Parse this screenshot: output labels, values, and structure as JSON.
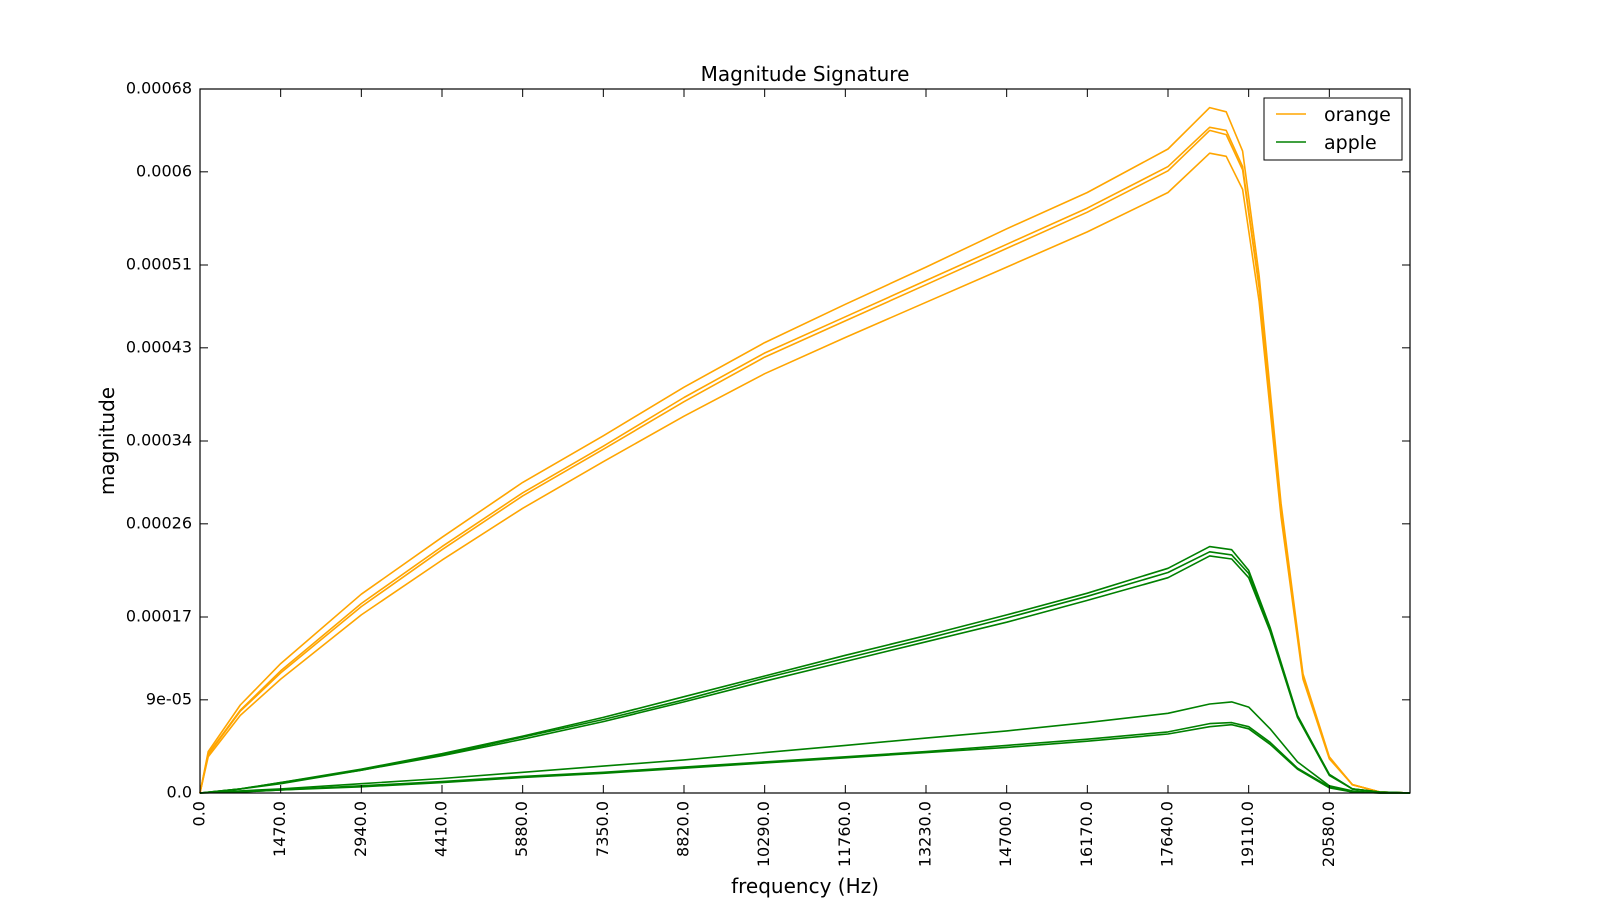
{
  "chart_data": {
    "type": "line",
    "title": "Magnitude Signature",
    "xlabel": "frequency (Hz)",
    "ylabel": "magnitude",
    "xlim": [
      0,
      22050
    ],
    "ylim": [
      0,
      0.00068
    ],
    "grid": false,
    "legend_position": "top-right",
    "x_ticks": [
      {
        "value": 0,
        "label": "0.0"
      },
      {
        "value": 1470,
        "label": "1470.0"
      },
      {
        "value": 2940,
        "label": "2940.0"
      },
      {
        "value": 4410,
        "label": "4410.0"
      },
      {
        "value": 5880,
        "label": "5880.0"
      },
      {
        "value": 7350,
        "label": "7350.0"
      },
      {
        "value": 8820,
        "label": "8820.0"
      },
      {
        "value": 10290,
        "label": "10290.0"
      },
      {
        "value": 11760,
        "label": "11760.0"
      },
      {
        "value": 13230,
        "label": "13230.0"
      },
      {
        "value": 14700,
        "label": "14700.0"
      },
      {
        "value": 16170,
        "label": "16170.0"
      },
      {
        "value": 17640,
        "label": "17640.0"
      },
      {
        "value": 19110,
        "label": "19110.0"
      },
      {
        "value": 20580,
        "label": "20580.0"
      }
    ],
    "y_ticks": [
      {
        "value": 0,
        "label": "0.0"
      },
      {
        "value": 9e-05,
        "label": "9e-05"
      },
      {
        "value": 0.00017,
        "label": "0.00017"
      },
      {
        "value": 0.00026,
        "label": "0.00026"
      },
      {
        "value": 0.00034,
        "label": "0.00034"
      },
      {
        "value": 0.00043,
        "label": "0.00043"
      },
      {
        "value": 0.00051,
        "label": "0.00051"
      },
      {
        "value": 0.0006,
        "label": "0.0006"
      },
      {
        "value": 0.00068,
        "label": "0.00068"
      }
    ],
    "legend": [
      {
        "label": "orange",
        "color": "#ffa500"
      },
      {
        "label": "apple",
        "color": "#008000"
      }
    ],
    "series": [
      {
        "name": "orange",
        "color": "#ffa500",
        "x": [
          0,
          150,
          735,
          1470,
          2940,
          4410,
          5880,
          7350,
          8820,
          10290,
          11760,
          13230,
          14700,
          16170,
          17640,
          18400,
          18700,
          19000,
          19300,
          19700,
          20100,
          20580,
          21000,
          21500,
          22050
        ],
        "y": [
          0,
          4e-05,
          8.5e-05,
          0.000125,
          0.000192,
          0.000247,
          0.0003,
          0.000345,
          0.000392,
          0.000435,
          0.000472,
          0.000508,
          0.000545,
          0.00058,
          0.000622,
          0.000662,
          0.000658,
          0.00062,
          0.0005,
          0.00028,
          0.000115,
          3.5e-05,
          8e-06,
          1e-06,
          0
        ]
      },
      {
        "name": "",
        "color": "#ffa500",
        "x": [
          0,
          150,
          735,
          1470,
          2940,
          4410,
          5880,
          7350,
          8820,
          10290,
          11760,
          13230,
          14700,
          16170,
          17640,
          18400,
          18700,
          19000,
          19300,
          19700,
          20100,
          20580,
          21000,
          21500,
          22050
        ],
        "y": [
          0,
          3.8e-05,
          8e-05,
          0.000118,
          0.000183,
          0.000238,
          0.00029,
          0.000335,
          0.000382,
          0.000425,
          0.00046,
          0.000495,
          0.00053,
          0.000565,
          0.000605,
          0.000643,
          0.00064,
          0.000605,
          0.00049,
          0.000275,
          0.000113,
          3.4e-05,
          8e-06,
          1e-06,
          0
        ]
      },
      {
        "name": "",
        "color": "#ffa500",
        "x": [
          0,
          150,
          735,
          1470,
          2940,
          4410,
          5880,
          7350,
          8820,
          10290,
          11760,
          13230,
          14700,
          16170,
          17640,
          18400,
          18700,
          19000,
          19300,
          19700,
          20100,
          20580,
          21000,
          21500,
          22050
        ],
        "y": [
          0,
          3.7e-05,
          7.9e-05,
          0.000116,
          0.00018,
          0.000235,
          0.000287,
          0.000332,
          0.000378,
          0.000421,
          0.000456,
          0.000491,
          0.000526,
          0.000561,
          0.000601,
          0.00064,
          0.000636,
          0.000602,
          0.000488,
          0.000274,
          0.000112,
          3.4e-05,
          8e-06,
          1e-06,
          0
        ]
      },
      {
        "name": "",
        "color": "#ffa500",
        "x": [
          0,
          150,
          735,
          1470,
          2940,
          4410,
          5880,
          7350,
          8820,
          10290,
          11760,
          13230,
          14700,
          16170,
          17640,
          18400,
          18700,
          19000,
          19300,
          19700,
          20100,
          20580,
          21000,
          21500,
          22050
        ],
        "y": [
          0,
          3.5e-05,
          7.5e-05,
          0.00011,
          0.000172,
          0.000225,
          0.000275,
          0.00032,
          0.000364,
          0.000405,
          0.00044,
          0.000474,
          0.000508,
          0.000542,
          0.00058,
          0.000618,
          0.000615,
          0.000583,
          0.000475,
          0.000267,
          0.00011,
          3.3e-05,
          8e-06,
          1e-06,
          0
        ]
      },
      {
        "name": "apple",
        "color": "#008000",
        "x": [
          0,
          735,
          1470,
          2940,
          4410,
          5880,
          7350,
          8820,
          10290,
          11760,
          13230,
          14700,
          16170,
          17640,
          18400,
          18800,
          19110,
          19500,
          20000,
          20580,
          21000,
          21500,
          22050
        ],
        "y": [
          0,
          4e-06,
          1e-05,
          2.3e-05,
          3.8e-05,
          5.5e-05,
          7.3e-05,
          9.3e-05,
          0.000113,
          0.000133,
          0.000152,
          0.000172,
          0.000193,
          0.000217,
          0.000238,
          0.000235,
          0.000215,
          0.00016,
          7.5e-05,
          1.8e-05,
          4e-06,
          1e-06,
          0
        ]
      },
      {
        "name": "",
        "color": "#008000",
        "x": [
          0,
          735,
          1470,
          2940,
          4410,
          5880,
          7350,
          8820,
          10290,
          11760,
          13230,
          14700,
          16170,
          17640,
          18400,
          18800,
          19110,
          19500,
          20000,
          20580,
          21000,
          21500,
          22050
        ],
        "y": [
          0,
          4e-06,
          1e-05,
          2.2e-05,
          3.7e-05,
          5.4e-05,
          7.1e-05,
          9e-05,
          0.000111,
          0.00013,
          0.000149,
          0.000169,
          0.00019,
          0.000213,
          0.000233,
          0.00023,
          0.000212,
          0.000158,
          7.4e-05,
          1.8e-05,
          4e-06,
          1e-06,
          0
        ]
      },
      {
        "name": "",
        "color": "#008000",
        "x": [
          0,
          735,
          1470,
          2940,
          4410,
          5880,
          7350,
          8820,
          10290,
          11760,
          13230,
          14700,
          16170,
          17640,
          18400,
          18800,
          19110,
          19500,
          20000,
          20580,
          21000,
          21500,
          22050
        ],
        "y": [
          0,
          4e-06,
          9e-06,
          2.2e-05,
          3.6e-05,
          5.2e-05,
          6.9e-05,
          8.8e-05,
          0.000108,
          0.000127,
          0.000146,
          0.000165,
          0.000186,
          0.000208,
          0.000229,
          0.000226,
          0.000208,
          0.000156,
          7.3e-05,
          1.7e-05,
          4e-06,
          1e-06,
          0
        ]
      },
      {
        "name": "",
        "color": "#008000",
        "x": [
          0,
          735,
          1470,
          2940,
          4410,
          5880,
          7350,
          8820,
          10290,
          11760,
          13230,
          14700,
          16170,
          17640,
          18400,
          18800,
          19110,
          19500,
          20000,
          20580,
          21000,
          21500,
          22050
        ],
        "y": [
          0,
          2e-06,
          4e-06,
          9e-06,
          1.4e-05,
          2e-05,
          2.6e-05,
          3.2e-05,
          3.9e-05,
          4.6e-05,
          5.3e-05,
          6e-05,
          6.8e-05,
          7.7e-05,
          8.6e-05,
          8.8e-05,
          8.3e-05,
          6.2e-05,
          3e-05,
          7e-06,
          2e-06,
          0,
          0
        ]
      },
      {
        "name": "",
        "color": "#008000",
        "x": [
          0,
          735,
          1470,
          2940,
          4410,
          5880,
          7350,
          8820,
          10290,
          11760,
          13230,
          14700,
          16170,
          17640,
          18400,
          18800,
          19110,
          19500,
          20000,
          20580,
          21000,
          21500,
          22050
        ],
        "y": [
          0,
          1e-06,
          3e-06,
          7e-06,
          1.1e-05,
          1.6e-05,
          2e-05,
          2.5e-05,
          3e-05,
          3.5e-05,
          4e-05,
          4.6e-05,
          5.2e-05,
          5.9e-05,
          6.7e-05,
          6.8e-05,
          6.4e-05,
          4.9e-05,
          2.4e-05,
          6e-06,
          1e-06,
          0,
          0
        ]
      },
      {
        "name": "",
        "color": "#008000",
        "x": [
          0,
          735,
          1470,
          2940,
          4410,
          5880,
          7350,
          8820,
          10290,
          11760,
          13230,
          14700,
          16170,
          17640,
          18400,
          18800,
          19110,
          19500,
          20000,
          20580,
          21000,
          21500,
          22050
        ],
        "y": [
          0,
          1e-06,
          3e-06,
          6e-06,
          1e-05,
          1.5e-05,
          1.9e-05,
          2.4e-05,
          2.9e-05,
          3.4e-05,
          3.9e-05,
          4.4e-05,
          5e-05,
          5.7e-05,
          6.4e-05,
          6.6e-05,
          6.2e-05,
          4.7e-05,
          2.3e-05,
          5e-06,
          1e-06,
          0,
          0
        ]
      }
    ]
  }
}
